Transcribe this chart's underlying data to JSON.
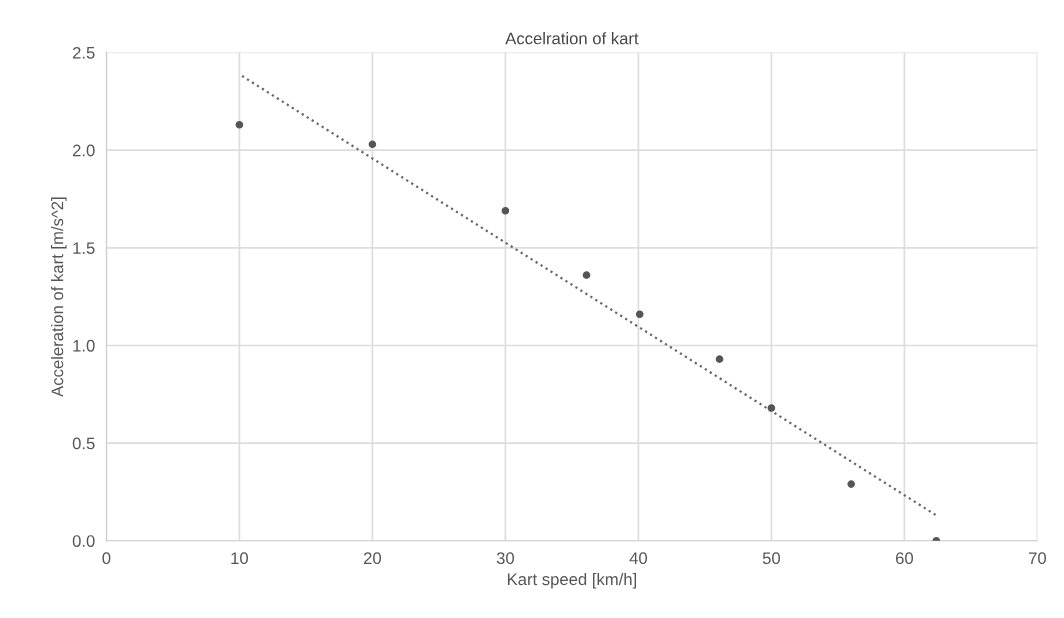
{
  "chart_data": {
    "type": "scatter",
    "title": "Accelration of kart",
    "xlabel": "Kart speed [km/h]",
    "ylabel": "Acceleration of kart [m/s^2]",
    "series": [
      {
        "color": "#555555",
        "marker": "circle",
        "x": [
          10,
          20,
          30,
          36.1,
          40.1,
          46.1,
          50,
          56,
          62.4
        ],
        "values": [
          2.13,
          2.03,
          1.69,
          1.36,
          1.16,
          0.93,
          0.68,
          0.29,
          0
        ]
      },
      {
        "type": "line",
        "color": "#666666",
        "line_style": "dotted",
        "marker": "none",
        "x": [
          10.2,
          62.4
        ],
        "values": [
          2.38,
          0.13
        ]
      }
    ],
    "xlim": [
      0,
      70
    ],
    "xticks": [
      0,
      10,
      20,
      30,
      40,
      50,
      60,
      70
    ],
    "ylim": [
      0,
      2.5
    ],
    "yticks": [
      {
        "value": 0,
        "label": "0.0"
      },
      {
        "value": 0.5,
        "label": "0.5"
      },
      {
        "value": 1,
        "label": "1.0"
      },
      {
        "value": 1.5,
        "label": "1.5"
      },
      {
        "value": 2,
        "label": "2.0"
      },
      {
        "value": 2.5,
        "label": "2.5"
      }
    ],
    "grid": true
  }
}
